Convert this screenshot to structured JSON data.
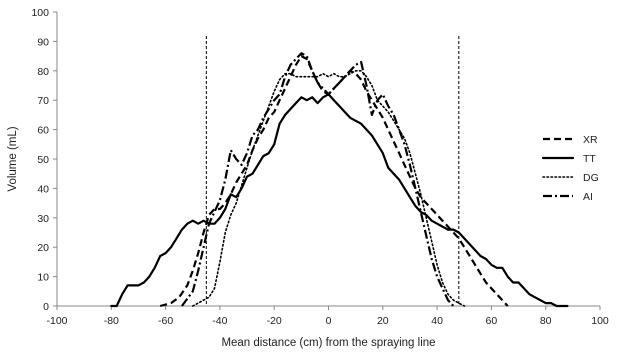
{
  "chart_data": {
    "type": "line",
    "title": "",
    "xlabel": "Mean distance (cm) from the spraying line",
    "ylabel": "Volume (mL)",
    "xlim": [
      -100,
      100
    ],
    "ylim": [
      0,
      100
    ],
    "xticks": [
      "-100",
      "-80",
      "-60",
      "-40",
      "-20",
      "0",
      "20",
      "40",
      "60",
      "80",
      "100"
    ],
    "yticks": [
      "0",
      "10",
      "20",
      "30",
      "40",
      "50",
      "60",
      "70",
      "80",
      "90",
      "100"
    ],
    "grid": false,
    "legend_position": "right",
    "reference_lines_x": [
      -45,
      48
    ],
    "series": [
      {
        "name": "XR",
        "style": "dashed",
        "x": [
          -62,
          -58,
          -55,
          -52,
          -50,
          -48,
          -46,
          -44,
          -42,
          -40,
          -38,
          -36,
          -34,
          -32,
          -30,
          -28,
          -26,
          -24,
          -22,
          -20,
          -18,
          -16,
          -14,
          -12,
          -10,
          -8,
          -6,
          -4,
          -2,
          0,
          2,
          4,
          6,
          8,
          10,
          12,
          14,
          16,
          18,
          20,
          22,
          24,
          26,
          28,
          30,
          32,
          34,
          36,
          38,
          40,
          42,
          44,
          46,
          48,
          50,
          52,
          54,
          56,
          58,
          60,
          62,
          64,
          66
        ],
        "y": [
          0,
          1,
          3,
          7,
          12,
          18,
          25,
          31,
          33,
          33,
          35,
          38,
          42,
          45,
          48,
          53,
          57,
          60,
          64,
          66,
          70,
          74,
          78,
          82,
          85,
          84,
          80,
          76,
          73,
          72,
          74,
          76,
          78,
          80,
          79,
          77,
          73,
          70,
          67,
          64,
          60,
          56,
          52,
          48,
          44,
          40,
          37,
          35,
          33,
          31,
          29,
          27,
          25,
          23,
          20,
          17,
          14,
          11,
          8,
          6,
          4,
          2,
          0
        ]
      },
      {
        "name": "TT",
        "style": "solid",
        "x": [
          -80,
          -78,
          -76,
          -74,
          -72,
          -70,
          -68,
          -66,
          -64,
          -62,
          -60,
          -58,
          -56,
          -54,
          -52,
          -50,
          -48,
          -46,
          -44,
          -42,
          -40,
          -38,
          -36,
          -34,
          -32,
          -30,
          -28,
          -26,
          -24,
          -22,
          -20,
          -18,
          -16,
          -14,
          -12,
          -10,
          -8,
          -6,
          -4,
          -2,
          0,
          2,
          4,
          6,
          8,
          10,
          12,
          14,
          16,
          18,
          20,
          22,
          24,
          26,
          28,
          30,
          32,
          34,
          36,
          38,
          40,
          42,
          44,
          46,
          48,
          50,
          52,
          54,
          56,
          58,
          60,
          62,
          64,
          66,
          68,
          70,
          72,
          74,
          76,
          78,
          80,
          82,
          84,
          86,
          88
        ],
        "y": [
          0,
          0,
          4,
          7,
          7,
          7,
          8,
          10,
          13,
          17,
          18,
          20,
          23,
          26,
          28,
          29,
          28,
          29,
          28,
          28,
          30,
          33,
          38,
          37,
          40,
          44,
          45,
          48,
          51,
          52,
          55,
          62,
          65,
          67,
          69,
          71,
          70,
          71,
          69,
          71,
          72,
          70,
          68,
          66,
          64,
          63,
          62,
          60,
          58,
          55,
          52,
          47,
          45,
          43,
          40,
          37,
          34,
          32,
          31,
          29,
          28,
          27,
          26,
          26,
          25,
          23,
          21,
          19,
          17,
          16,
          14,
          13,
          13,
          10,
          8,
          8,
          6,
          4,
          3,
          2,
          1,
          1,
          0,
          0,
          0
        ]
      },
      {
        "name": "DG",
        "style": "dotted",
        "x": [
          -50,
          -48,
          -46,
          -44,
          -42,
          -40,
          -38,
          -36,
          -34,
          -32,
          -30,
          -28,
          -26,
          -24,
          -22,
          -20,
          -18,
          -16,
          -14,
          -12,
          -10,
          -8,
          -6,
          -4,
          -2,
          0,
          2,
          4,
          6,
          8,
          10,
          12,
          14,
          16,
          18,
          20,
          22,
          24,
          26,
          28,
          30,
          32,
          34,
          36,
          38,
          40,
          42,
          44,
          46,
          48,
          50
        ],
        "y": [
          0,
          1,
          2,
          3,
          6,
          15,
          25,
          31,
          35,
          41,
          47,
          53,
          58,
          63,
          68,
          73,
          77,
          79,
          79,
          78,
          78,
          78,
          78,
          78,
          79,
          78,
          79,
          78,
          78,
          79,
          80,
          80,
          78,
          75,
          70,
          68,
          66,
          63,
          60,
          57,
          52,
          45,
          38,
          30,
          22,
          14,
          8,
          4,
          2,
          1,
          0
        ]
      },
      {
        "name": "AI",
        "style": "dashdot",
        "x": [
          -54,
          -50,
          -48,
          -46,
          -44,
          -42,
          -40,
          -38,
          -36,
          -34,
          -32,
          -30,
          -28,
          -26,
          -24,
          -22,
          -20,
          -18,
          -16,
          -14,
          -12,
          -10,
          -8,
          -6,
          -4,
          -2,
          0,
          2,
          4,
          6,
          8,
          10,
          12,
          14,
          16,
          18,
          20,
          22,
          24,
          26,
          28,
          30,
          32,
          34,
          36,
          38,
          40,
          42,
          44,
          46
        ],
        "y": [
          0,
          5,
          12,
          20,
          28,
          32,
          36,
          43,
          53,
          50,
          48,
          52,
          58,
          60,
          64,
          67,
          70,
          72,
          78,
          82,
          84,
          86,
          85,
          80,
          76,
          74,
          72,
          74,
          76,
          78,
          80,
          82,
          83,
          75,
          65,
          70,
          72,
          68,
          65,
          60,
          55,
          48,
          40,
          32,
          24,
          16,
          10,
          6,
          2,
          0
        ]
      }
    ]
  }
}
